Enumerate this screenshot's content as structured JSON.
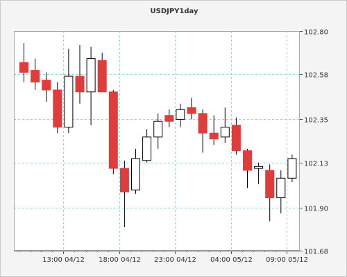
{
  "chart_data": {
    "type": "candlestick",
    "title": "USDJPY1day",
    "ylim": [
      101.68,
      102.8
    ],
    "y_ticks": [
      "102.80",
      "102.58",
      "102.35",
      "102.13",
      "101.90",
      "101.68"
    ],
    "x_ticks": [
      "13:00 04/12",
      "18:00 04/12",
      "23:00 04/12",
      "04:00 05/12",
      "09:00 05/12"
    ],
    "grid": true,
    "up_color": "#ffffff",
    "down_color": "#e03c3c",
    "candles": [
      {
        "open": 102.64,
        "high": 102.74,
        "low": 102.54,
        "close": 102.59
      },
      {
        "open": 102.6,
        "high": 102.66,
        "low": 102.5,
        "close": 102.54
      },
      {
        "open": 102.55,
        "high": 102.59,
        "low": 102.44,
        "close": 102.5
      },
      {
        "open": 102.5,
        "high": 102.54,
        "low": 102.28,
        "close": 102.31
      },
      {
        "open": 102.31,
        "high": 102.71,
        "low": 102.28,
        "close": 102.57
      },
      {
        "open": 102.57,
        "high": 102.73,
        "low": 102.43,
        "close": 102.49
      },
      {
        "open": 102.49,
        "high": 102.72,
        "low": 102.32,
        "close": 102.66
      },
      {
        "open": 102.65,
        "high": 102.69,
        "low": 102.49,
        "close": 102.49
      },
      {
        "open": 102.49,
        "high": 102.5,
        "low": 102.07,
        "close": 102.1
      },
      {
        "open": 102.1,
        "high": 102.14,
        "low": 101.8,
        "close": 101.98
      },
      {
        "open": 101.99,
        "high": 102.2,
        "low": 101.97,
        "close": 102.15
      },
      {
        "open": 102.14,
        "high": 102.3,
        "low": 102.13,
        "close": 102.26
      },
      {
        "open": 102.26,
        "high": 102.38,
        "low": 102.2,
        "close": 102.34
      },
      {
        "open": 102.37,
        "high": 102.4,
        "low": 102.31,
        "close": 102.34
      },
      {
        "open": 102.35,
        "high": 102.43,
        "low": 102.31,
        "close": 102.4
      },
      {
        "open": 102.41,
        "high": 102.46,
        "low": 102.35,
        "close": 102.38
      },
      {
        "open": 102.38,
        "high": 102.4,
        "low": 102.18,
        "close": 102.28
      },
      {
        "open": 102.28,
        "high": 102.37,
        "low": 102.22,
        "close": 102.25
      },
      {
        "open": 102.26,
        "high": 102.41,
        "low": 102.23,
        "close": 102.31
      },
      {
        "open": 102.32,
        "high": 102.36,
        "low": 102.17,
        "close": 102.19
      },
      {
        "open": 102.19,
        "high": 102.2,
        "low": 102.0,
        "close": 102.09
      },
      {
        "open": 102.1,
        "high": 102.13,
        "low": 102.02,
        "close": 102.11
      },
      {
        "open": 102.09,
        "high": 102.12,
        "low": 101.83,
        "close": 101.95
      },
      {
        "open": 101.95,
        "high": 102.09,
        "low": 101.87,
        "close": 102.05
      },
      {
        "open": 102.05,
        "high": 102.17,
        "low": 102.03,
        "close": 102.15
      }
    ]
  }
}
